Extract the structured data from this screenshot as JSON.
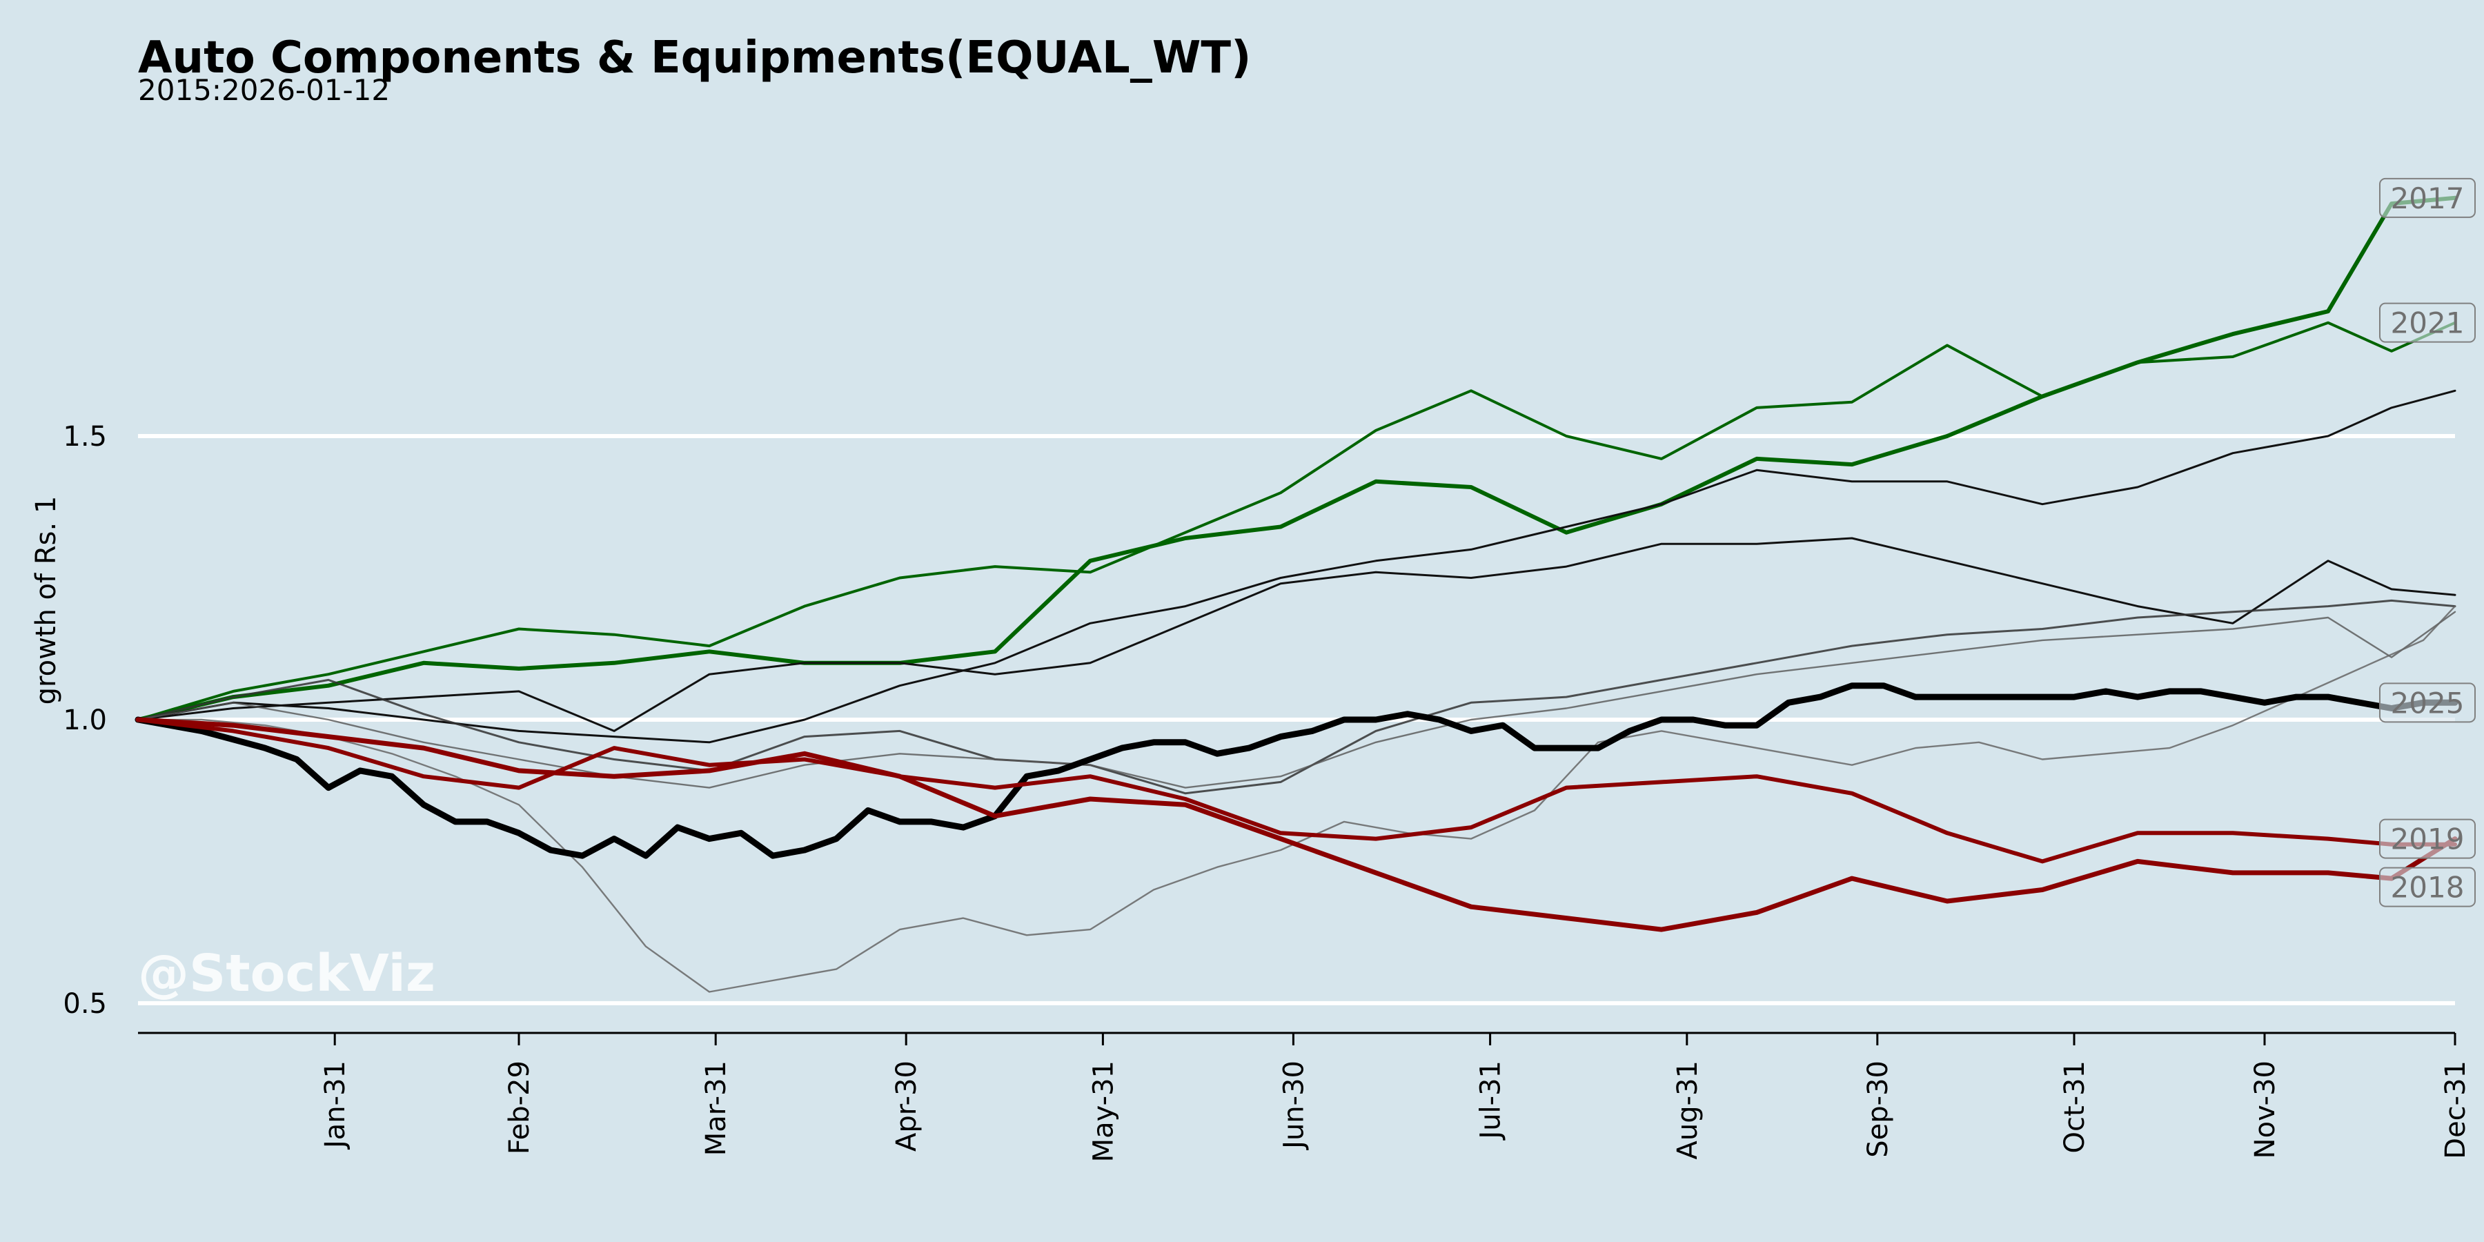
{
  "chart_data": {
    "type": "line",
    "title": "Auto Components & Equipments(EQUAL_WT)",
    "subtitle": "2015:2026-01-12",
    "ylabel": "growth of Rs. 1",
    "watermark": "@StockViz",
    "ylim": [
      0.45,
      2.05
    ],
    "yticks": [
      {
        "value": 0.5,
        "label": "0.5"
      },
      {
        "value": 1.0,
        "label": "1.0"
      },
      {
        "value": 1.5,
        "label": "1.5"
      }
    ],
    "xlim": [
      0,
      365
    ],
    "xticks": [
      {
        "value": 31,
        "label": "Jan-31"
      },
      {
        "value": 60,
        "label": "Feb-29"
      },
      {
        "value": 91,
        "label": "Mar-31"
      },
      {
        "value": 121,
        "label": "Apr-30"
      },
      {
        "value": 152,
        "label": "May-31"
      },
      {
        "value": 182,
        "label": "Jun-30"
      },
      {
        "value": 213,
        "label": "Jul-31"
      },
      {
        "value": 244,
        "label": "Aug-31"
      },
      {
        "value": 274,
        "label": "Sep-30"
      },
      {
        "value": 305,
        "label": "Oct-31"
      },
      {
        "value": 335,
        "label": "Nov-30"
      },
      {
        "value": 366,
        "label": "Dec-31"
      }
    ],
    "grid": "horizontal",
    "series": [
      {
        "name": "2017",
        "labeled": true,
        "color": "#006400",
        "width": 3,
        "opacity": 1,
        "x": [
          0,
          15,
          30,
          45,
          60,
          75,
          90,
          105,
          120,
          135,
          150,
          165,
          180,
          195,
          210,
          225,
          240,
          255,
          270,
          285,
          300,
          315,
          330,
          345,
          355,
          365
        ],
        "y": [
          1.0,
          1.04,
          1.06,
          1.1,
          1.09,
          1.1,
          1.12,
          1.1,
          1.1,
          1.12,
          1.28,
          1.32,
          1.34,
          1.42,
          1.41,
          1.33,
          1.38,
          1.46,
          1.45,
          1.5,
          1.57,
          1.63,
          1.68,
          1.72,
          1.91,
          1.92
        ]
      },
      {
        "name": "2021",
        "labeled": true,
        "color": "#006400",
        "width": 2,
        "opacity": 1,
        "x": [
          0,
          15,
          30,
          45,
          60,
          75,
          90,
          105,
          120,
          135,
          150,
          165,
          180,
          195,
          210,
          225,
          240,
          255,
          270,
          285,
          300,
          315,
          330,
          345,
          355,
          365
        ],
        "y": [
          1.0,
          1.05,
          1.08,
          1.12,
          1.16,
          1.15,
          1.13,
          1.2,
          1.25,
          1.27,
          1.26,
          1.33,
          1.4,
          1.51,
          1.58,
          1.5,
          1.46,
          1.55,
          1.56,
          1.66,
          1.57,
          1.63,
          1.64,
          1.7,
          1.65,
          1.7
        ]
      },
      {
        "name": "",
        "labeled": false,
        "color": "#111111",
        "width": 1.5,
        "opacity": 1,
        "x": [
          0,
          15,
          30,
          45,
          60,
          75,
          90,
          105,
          120,
          135,
          150,
          165,
          180,
          195,
          210,
          225,
          240,
          255,
          270,
          285,
          300,
          315,
          330,
          345,
          355,
          365
        ],
        "y": [
          1.0,
          1.03,
          1.02,
          1.0,
          0.98,
          0.97,
          0.96,
          1.0,
          1.06,
          1.1,
          1.17,
          1.2,
          1.25,
          1.28,
          1.3,
          1.34,
          1.38,
          1.44,
          1.42,
          1.42,
          1.38,
          1.41,
          1.47,
          1.5,
          1.55,
          1.58
        ]
      },
      {
        "name": "",
        "labeled": false,
        "color": "#111111",
        "width": 1.5,
        "opacity": 1,
        "x": [
          0,
          15,
          30,
          45,
          60,
          75,
          90,
          105,
          120,
          135,
          150,
          165,
          180,
          195,
          210,
          225,
          240,
          255,
          270,
          285,
          300,
          315,
          330,
          345,
          355,
          365
        ],
        "y": [
          1.0,
          1.02,
          1.03,
          1.04,
          1.05,
          0.98,
          1.08,
          1.1,
          1.1,
          1.08,
          1.1,
          1.17,
          1.24,
          1.26,
          1.25,
          1.27,
          1.31,
          1.31,
          1.32,
          1.28,
          1.24,
          1.2,
          1.17,
          1.28,
          1.23,
          1.22
        ]
      },
      {
        "name": "",
        "labeled": false,
        "color": "#333333",
        "width": 1.5,
        "opacity": 0.85,
        "x": [
          0,
          15,
          30,
          45,
          60,
          75,
          90,
          105,
          120,
          135,
          150,
          165,
          180,
          195,
          210,
          225,
          240,
          255,
          270,
          285,
          300,
          315,
          330,
          345,
          355,
          365
        ],
        "y": [
          1.0,
          1.04,
          1.07,
          1.01,
          0.96,
          0.93,
          0.91,
          0.97,
          0.98,
          0.93,
          0.92,
          0.87,
          0.89,
          0.98,
          1.03,
          1.04,
          1.07,
          1.1,
          1.13,
          1.15,
          1.16,
          1.18,
          1.19,
          1.2,
          1.21,
          1.2
        ]
      },
      {
        "name": "",
        "labeled": false,
        "color": "#555555",
        "width": 1.2,
        "opacity": 0.8,
        "x": [
          0,
          15,
          30,
          45,
          60,
          75,
          90,
          105,
          120,
          135,
          150,
          165,
          180,
          195,
          210,
          225,
          240,
          255,
          270,
          285,
          300,
          315,
          330,
          345,
          355,
          365
        ],
        "y": [
          1.0,
          1.03,
          1.0,
          0.96,
          0.93,
          0.9,
          0.88,
          0.92,
          0.94,
          0.93,
          0.92,
          0.88,
          0.9,
          0.96,
          1.0,
          1.02,
          1.05,
          1.08,
          1.1,
          1.12,
          1.14,
          1.15,
          1.16,
          1.18,
          1.11,
          1.19
        ]
      },
      {
        "name": "",
        "labeled": false,
        "color": "#666666",
        "width": 1.2,
        "opacity": 0.85,
        "x": [
          0,
          10,
          20,
          30,
          40,
          50,
          60,
          70,
          80,
          90,
          100,
          110,
          120,
          130,
          140,
          150,
          160,
          170,
          180,
          190,
          200,
          210,
          220,
          230,
          240,
          250,
          260,
          270,
          280,
          290,
          300,
          310,
          320,
          330,
          340,
          350,
          360,
          365
        ],
        "y": [
          1.0,
          1.0,
          0.99,
          0.97,
          0.94,
          0.9,
          0.85,
          0.74,
          0.6,
          0.52,
          0.54,
          0.56,
          0.63,
          0.65,
          0.62,
          0.63,
          0.7,
          0.74,
          0.77,
          0.82,
          0.8,
          0.79,
          0.84,
          0.96,
          0.98,
          0.96,
          0.94,
          0.92,
          0.95,
          0.96,
          0.93,
          0.94,
          0.95,
          0.99,
          1.04,
          1.09,
          1.14,
          1.2
        ]
      },
      {
        "name": "2025",
        "labeled": true,
        "color": "#000000",
        "width": 4.5,
        "opacity": 1,
        "x": [
          0,
          10,
          20,
          25,
          30,
          35,
          40,
          45,
          50,
          55,
          60,
          65,
          70,
          75,
          80,
          85,
          90,
          95,
          100,
          105,
          110,
          115,
          120,
          125,
          130,
          135,
          140,
          145,
          150,
          155,
          160,
          165,
          170,
          175,
          180,
          185,
          190,
          195,
          200,
          205,
          210,
          215,
          220,
          225,
          230,
          235,
          240,
          245,
          250,
          255,
          260,
          265,
          270,
          275,
          280,
          285,
          290,
          295,
          300,
          305,
          310,
          315,
          320,
          325,
          330,
          335,
          340,
          345,
          350,
          355,
          360,
          365
        ],
        "y": [
          1.0,
          0.98,
          0.95,
          0.93,
          0.88,
          0.91,
          0.9,
          0.85,
          0.82,
          0.82,
          0.8,
          0.77,
          0.76,
          0.79,
          0.76,
          0.81,
          0.79,
          0.8,
          0.76,
          0.77,
          0.79,
          0.84,
          0.82,
          0.82,
          0.81,
          0.83,
          0.9,
          0.91,
          0.93,
          0.95,
          0.96,
          0.96,
          0.94,
          0.95,
          0.97,
          0.98,
          1.0,
          1.0,
          1.01,
          1.0,
          0.98,
          0.99,
          0.95,
          0.95,
          0.95,
          0.98,
          1.0,
          1.0,
          0.99,
          0.99,
          1.03,
          1.04,
          1.06,
          1.06,
          1.04,
          1.04,
          1.04,
          1.04,
          1.04,
          1.04,
          1.05,
          1.04,
          1.05,
          1.05,
          1.04,
          1.03,
          1.04,
          1.04,
          1.03,
          1.02,
          1.03,
          1.03
        ]
      },
      {
        "name": "2018",
        "labeled": true,
        "color": "#8b0000",
        "width": 3,
        "opacity": 1,
        "x": [
          0,
          15,
          30,
          45,
          60,
          75,
          90,
          105,
          120,
          135,
          150,
          165,
          180,
          195,
          210,
          225,
          240,
          255,
          270,
          285,
          300,
          315,
          330,
          345,
          355,
          365
        ],
        "y": [
          1.0,
          0.98,
          0.95,
          0.9,
          0.88,
          0.95,
          0.92,
          0.93,
          0.9,
          0.88,
          0.9,
          0.86,
          0.8,
          0.79,
          0.81,
          0.88,
          0.89,
          0.9,
          0.87,
          0.8,
          0.75,
          0.8,
          0.8,
          0.79,
          0.78,
          0.78
        ]
      },
      {
        "name": "2019",
        "labeled": true,
        "color": "#8b0000",
        "width": 3.5,
        "opacity": 1,
        "x": [
          0,
          15,
          30,
          45,
          60,
          75,
          90,
          105,
          120,
          135,
          150,
          165,
          180,
          195,
          210,
          225,
          240,
          255,
          270,
          285,
          300,
          315,
          330,
          345,
          355,
          365
        ],
        "y": [
          1.0,
          0.99,
          0.97,
          0.95,
          0.91,
          0.9,
          0.91,
          0.94,
          0.9,
          0.83,
          0.86,
          0.85,
          0.79,
          0.73,
          0.67,
          0.65,
          0.63,
          0.66,
          0.72,
          0.68,
          0.7,
          0.75,
          0.73,
          0.73,
          0.72,
          0.79
        ]
      }
    ]
  }
}
